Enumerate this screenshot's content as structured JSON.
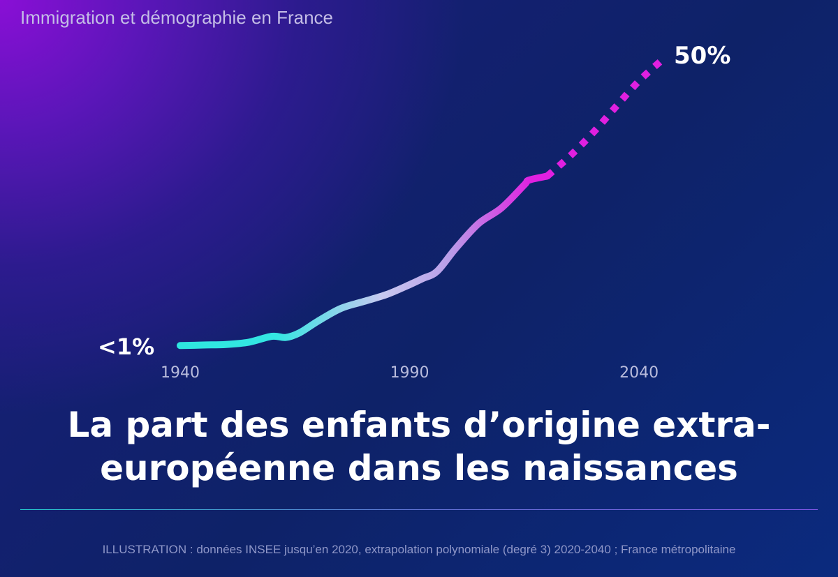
{
  "header": {
    "label": "Immigration et démographie en France"
  },
  "chart_data": {
    "type": "line",
    "title": "La part des enfants d’origine extra-européenne dans les naissances",
    "x_ticks": [
      "1940",
      "1990",
      "2040"
    ],
    "xlim": [
      1940,
      2045
    ],
    "ylim": [
      0,
      50
    ],
    "start_label": "<1%",
    "end_label": "50%",
    "series": [
      {
        "style": "solid",
        "x": [
          1940,
          1945,
          1950,
          1955,
          1960,
          1963,
          1966,
          1970,
          1975,
          1980,
          1985,
          1990,
          1993,
          1996,
          2000,
          2005,
          2010,
          2015,
          2016,
          2020
        ],
        "y": [
          0.8,
          0.9,
          1.0,
          1.4,
          2.4,
          2.2,
          3.0,
          5.0,
          7.2,
          8.4,
          9.6,
          11.3,
          12.4,
          13.6,
          17.5,
          21.8,
          24.5,
          28.5,
          29.3,
          30.0
        ]
      },
      {
        "style": "dotted",
        "x": [
          2020,
          2025,
          2030,
          2035,
          2040,
          2045
        ],
        "y": [
          30.0,
          33.5,
          37.5,
          42.0,
          46.4,
          50.0
        ]
      }
    ]
  },
  "footnote": "ILLUSTRATION : données INSEE jusqu’en 2020, extrapolation polynomiale (degré 3) 2020-2040 ; France métropolitaine",
  "colors": {
    "start": "#2ee6e0",
    "mid": "#c8c8f0",
    "end": "#e020e0"
  }
}
